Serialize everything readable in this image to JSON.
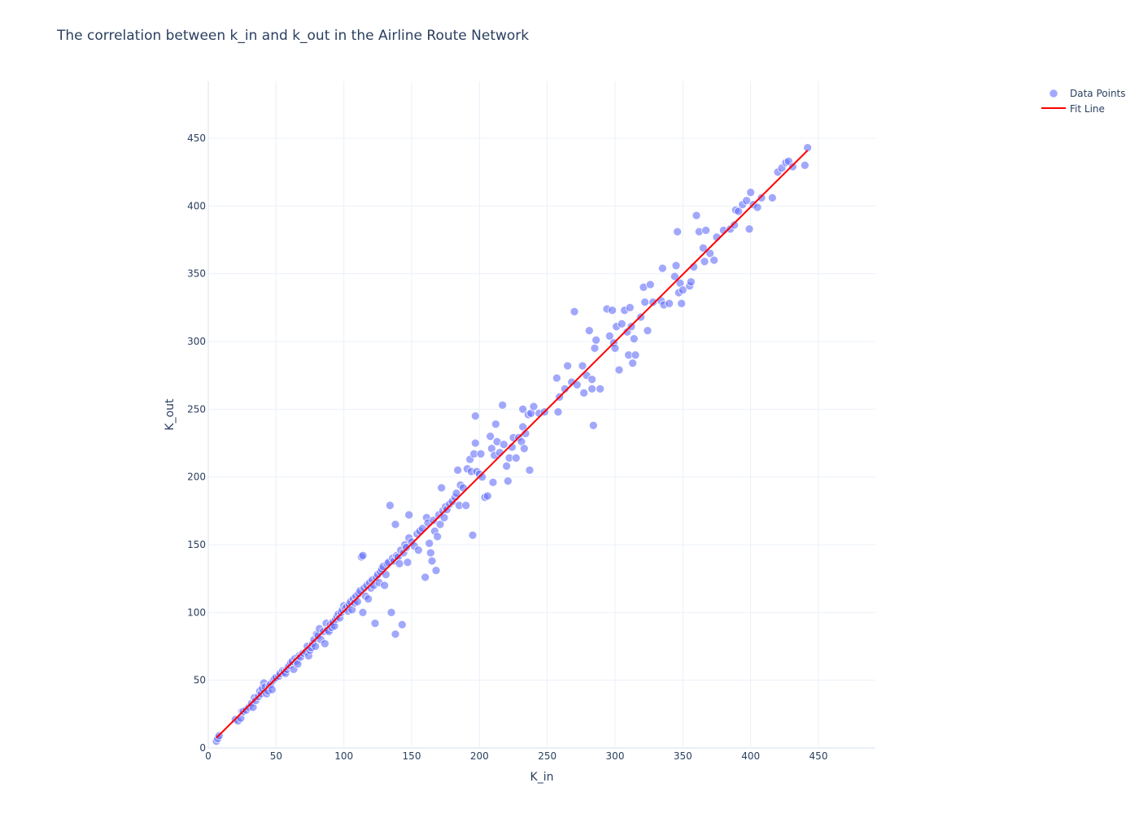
{
  "chart_data": {
    "type": "scatter",
    "title": "The correlation between k_in and k_out in the Airline Route Network",
    "xlabel": "K_in",
    "ylabel": "K_out",
    "xlim": [
      0,
      492
    ],
    "ylim": [
      0,
      492
    ],
    "x_ticks": [
      0,
      50,
      100,
      150,
      200,
      250,
      300,
      350,
      400,
      450
    ],
    "y_ticks": [
      0,
      50,
      100,
      150,
      200,
      250,
      300,
      350,
      400,
      450
    ],
    "grid": true,
    "legend_position": "top-right",
    "colors": {
      "points": "#636efa",
      "fit_line": "#ff0000",
      "grid": "#ebf0f8",
      "text": "#2a3f5f"
    },
    "legend": [
      "Data Points",
      "Fit Line"
    ],
    "series": [
      {
        "name": "Data Points",
        "mode": "markers",
        "points": [
          [
            6,
            5
          ],
          [
            7,
            7
          ],
          [
            8,
            9
          ],
          [
            20,
            21
          ],
          [
            22,
            20
          ],
          [
            24,
            22
          ],
          [
            25,
            27
          ],
          [
            26,
            27
          ],
          [
            28,
            28
          ],
          [
            30,
            30
          ],
          [
            32,
            33
          ],
          [
            33,
            30
          ],
          [
            34,
            37
          ],
          [
            35,
            35
          ],
          [
            37,
            38
          ],
          [
            38,
            42
          ],
          [
            39,
            40
          ],
          [
            40,
            44
          ],
          [
            41,
            48
          ],
          [
            42,
            45
          ],
          [
            43,
            40
          ],
          [
            44,
            42
          ],
          [
            45,
            46
          ],
          [
            46,
            47
          ],
          [
            47,
            43
          ],
          [
            48,
            50
          ],
          [
            49,
            51
          ],
          [
            50,
            52
          ],
          [
            52,
            53
          ],
          [
            53,
            55
          ],
          [
            55,
            57
          ],
          [
            56,
            56
          ],
          [
            57,
            55
          ],
          [
            58,
            58
          ],
          [
            59,
            60
          ],
          [
            60,
            61
          ],
          [
            61,
            63
          ],
          [
            62,
            64
          ],
          [
            63,
            58
          ],
          [
            64,
            66
          ],
          [
            65,
            64
          ],
          [
            66,
            62
          ],
          [
            67,
            68
          ],
          [
            68,
            67
          ],
          [
            70,
            70
          ],
          [
            72,
            71
          ],
          [
            73,
            75
          ],
          [
            74,
            68
          ],
          [
            75,
            72
          ],
          [
            76,
            74
          ],
          [
            77,
            77
          ],
          [
            78,
            80
          ],
          [
            79,
            75
          ],
          [
            80,
            84
          ],
          [
            81,
            83
          ],
          [
            82,
            88
          ],
          [
            83,
            80
          ],
          [
            85,
            86
          ],
          [
            86,
            77
          ],
          [
            87,
            92
          ],
          [
            88,
            87
          ],
          [
            89,
            86
          ],
          [
            90,
            91
          ],
          [
            91,
            89
          ],
          [
            92,
            93
          ],
          [
            93,
            90
          ],
          [
            94,
            95
          ],
          [
            95,
            97
          ],
          [
            96,
            99
          ],
          [
            97,
            96
          ],
          [
            98,
            100
          ],
          [
            99,
            102
          ],
          [
            100,
            105
          ],
          [
            101,
            103
          ],
          [
            102,
            104
          ],
          [
            103,
            101
          ],
          [
            104,
            106
          ],
          [
            105,
            108
          ],
          [
            106,
            102
          ],
          [
            107,
            110
          ],
          [
            108,
            107
          ],
          [
            109,
            112
          ],
          [
            110,
            108
          ],
          [
            111,
            114
          ],
          [
            112,
            116
          ],
          [
            113,
            141
          ],
          [
            114,
            142
          ],
          [
            114,
            100
          ],
          [
            115,
            118
          ],
          [
            116,
            112
          ],
          [
            117,
            120
          ],
          [
            118,
            110
          ],
          [
            119,
            122
          ],
          [
            120,
            118
          ],
          [
            121,
            124
          ],
          [
            122,
            120
          ],
          [
            123,
            92
          ],
          [
            124,
            126
          ],
          [
            125,
            128
          ],
          [
            126,
            122
          ],
          [
            127,
            130
          ],
          [
            128,
            132
          ],
          [
            129,
            134
          ],
          [
            130,
            120
          ],
          [
            131,
            128
          ],
          [
            132,
            136
          ],
          [
            133,
            137
          ],
          [
            134,
            179
          ],
          [
            135,
            100
          ],
          [
            136,
            140
          ],
          [
            137,
            138
          ],
          [
            138,
            84
          ],
          [
            138,
            165
          ],
          [
            139,
            142
          ],
          [
            140,
            141
          ],
          [
            141,
            136
          ],
          [
            142,
            146
          ],
          [
            143,
            91
          ],
          [
            144,
            144
          ],
          [
            145,
            150
          ],
          [
            146,
            148
          ],
          [
            147,
            137
          ],
          [
            148,
            155
          ],
          [
            148,
            172
          ],
          [
            150,
            152
          ],
          [
            152,
            149
          ],
          [
            154,
            158
          ],
          [
            155,
            146
          ],
          [
            156,
            160
          ],
          [
            158,
            162
          ],
          [
            160,
            126
          ],
          [
            161,
            170
          ],
          [
            162,
            166
          ],
          [
            163,
            151
          ],
          [
            164,
            144
          ],
          [
            165,
            138
          ],
          [
            166,
            168
          ],
          [
            167,
            160
          ],
          [
            168,
            131
          ],
          [
            169,
            156
          ],
          [
            170,
            172
          ],
          [
            171,
            165
          ],
          [
            172,
            192
          ],
          [
            173,
            175
          ],
          [
            174,
            170
          ],
          [
            175,
            178
          ],
          [
            176,
            176
          ],
          [
            178,
            180
          ],
          [
            180,
            182
          ],
          [
            182,
            185
          ],
          [
            183,
            188
          ],
          [
            184,
            205
          ],
          [
            185,
            179
          ],
          [
            186,
            194
          ],
          [
            188,
            192
          ],
          [
            190,
            179
          ],
          [
            191,
            206
          ],
          [
            193,
            213
          ],
          [
            194,
            204
          ],
          [
            195,
            157
          ],
          [
            196,
            217
          ],
          [
            197,
            245
          ],
          [
            197,
            225
          ],
          [
            198,
            204
          ],
          [
            200,
            202
          ],
          [
            201,
            217
          ],
          [
            202,
            200
          ],
          [
            204,
            185
          ],
          [
            206,
            186
          ],
          [
            208,
            230
          ],
          [
            209,
            221
          ],
          [
            210,
            196
          ],
          [
            211,
            216
          ],
          [
            212,
            239
          ],
          [
            213,
            226
          ],
          [
            215,
            218
          ],
          [
            217,
            253
          ],
          [
            218,
            224
          ],
          [
            220,
            208
          ],
          [
            221,
            197
          ],
          [
            222,
            214
          ],
          [
            224,
            222
          ],
          [
            225,
            229
          ],
          [
            227,
            214
          ],
          [
            229,
            229
          ],
          [
            231,
            226
          ],
          [
            232,
            250
          ],
          [
            232,
            237
          ],
          [
            233,
            221
          ],
          [
            234,
            232
          ],
          [
            236,
            246
          ],
          [
            237,
            205
          ],
          [
            238,
            247
          ],
          [
            240,
            252
          ],
          [
            244,
            247
          ],
          [
            248,
            248
          ],
          [
            257,
            273
          ],
          [
            258,
            248
          ],
          [
            259,
            259
          ],
          [
            263,
            265
          ],
          [
            265,
            282
          ],
          [
            268,
            270
          ],
          [
            270,
            322
          ],
          [
            272,
            268
          ],
          [
            276,
            282
          ],
          [
            277,
            262
          ],
          [
            279,
            275
          ],
          [
            281,
            308
          ],
          [
            283,
            265
          ],
          [
            283,
            272
          ],
          [
            284,
            238
          ],
          [
            285,
            295
          ],
          [
            286,
            301
          ],
          [
            289,
            265
          ],
          [
            294,
            324
          ],
          [
            296,
            304
          ],
          [
            298,
            323
          ],
          [
            299,
            299
          ],
          [
            300,
            295
          ],
          [
            301,
            311
          ],
          [
            303,
            279
          ],
          [
            305,
            313
          ],
          [
            307,
            323
          ],
          [
            309,
            307
          ],
          [
            310,
            290
          ],
          [
            311,
            325
          ],
          [
            312,
            311
          ],
          [
            313,
            284
          ],
          [
            314,
            302
          ],
          [
            315,
            290
          ],
          [
            319,
            318
          ],
          [
            321,
            340
          ],
          [
            322,
            329
          ],
          [
            324,
            308
          ],
          [
            326,
            342
          ],
          [
            328,
            329
          ],
          [
            334,
            330
          ],
          [
            335,
            354
          ],
          [
            336,
            327
          ],
          [
            340,
            328
          ],
          [
            344,
            348
          ],
          [
            345,
            356
          ],
          [
            346,
            381
          ],
          [
            347,
            336
          ],
          [
            348,
            343
          ],
          [
            349,
            328
          ],
          [
            350,
            338
          ],
          [
            355,
            341
          ],
          [
            356,
            344
          ],
          [
            358,
            355
          ],
          [
            360,
            393
          ],
          [
            362,
            381
          ],
          [
            365,
            369
          ],
          [
            366,
            359
          ],
          [
            367,
            382
          ],
          [
            370,
            365
          ],
          [
            373,
            360
          ],
          [
            375,
            377
          ],
          [
            380,
            382
          ],
          [
            385,
            383
          ],
          [
            388,
            386
          ],
          [
            389,
            397
          ],
          [
            391,
            396
          ],
          [
            394,
            401
          ],
          [
            397,
            404
          ],
          [
            399,
            383
          ],
          [
            400,
            410
          ],
          [
            402,
            401
          ],
          [
            405,
            399
          ],
          [
            408,
            406
          ],
          [
            416,
            406
          ],
          [
            420,
            425
          ],
          [
            423,
            428
          ],
          [
            426,
            432
          ],
          [
            428,
            433
          ],
          [
            431,
            429
          ],
          [
            440,
            430
          ],
          [
            442,
            443
          ]
        ]
      },
      {
        "name": "Fit Line",
        "mode": "lines",
        "points": [
          [
            6,
            7.5
          ],
          [
            442,
            441
          ]
        ]
      }
    ]
  }
}
